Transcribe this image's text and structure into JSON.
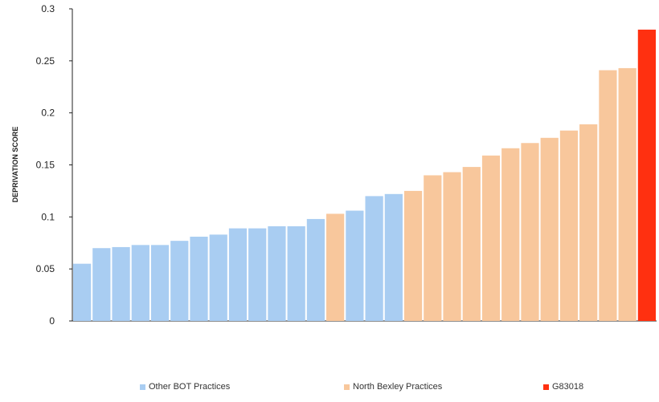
{
  "chart_data": {
    "type": "bar",
    "title": "",
    "xlabel": "",
    "ylabel": "DEPRIVATION SCORE",
    "ylim": [
      0,
      0.3
    ],
    "yticks": [
      "0",
      "0.05",
      "0.1",
      "0.15",
      "0.2",
      "0.25",
      "0.3"
    ],
    "ytick_values": [
      0,
      0.05,
      0.1,
      0.15,
      0.2,
      0.25,
      0.3
    ],
    "grid": false,
    "legend_position": "bottom",
    "series": [
      {
        "name": "Other BOT Practices",
        "color": "#a9cdf2",
        "values": [
          0.055,
          0.07,
          0.071,
          0.073,
          0.073,
          0.077,
          0.081,
          0.083,
          0.089,
          0.089,
          0.091,
          0.091,
          0.098,
          0.106,
          0.12,
          0.122
        ]
      },
      {
        "name": "North Bexley Practices",
        "color": "#f8c79c",
        "values": [
          0.103,
          0.125,
          0.14,
          0.143,
          0.148,
          0.159,
          0.166,
          0.171,
          0.176,
          0.183,
          0.189,
          0.241,
          0.243
        ]
      },
      {
        "name": "G83018",
        "color": "#ff3010",
        "values": [
          0.28
        ]
      }
    ],
    "bar_order": [
      {
        "series": 0,
        "index": 0
      },
      {
        "series": 0,
        "index": 1
      },
      {
        "series": 0,
        "index": 2
      },
      {
        "series": 0,
        "index": 3
      },
      {
        "series": 0,
        "index": 4
      },
      {
        "series": 0,
        "index": 5
      },
      {
        "series": 0,
        "index": 6
      },
      {
        "series": 0,
        "index": 7
      },
      {
        "series": 0,
        "index": 8
      },
      {
        "series": 0,
        "index": 9
      },
      {
        "series": 0,
        "index": 10
      },
      {
        "series": 0,
        "index": 11
      },
      {
        "series": 0,
        "index": 12
      },
      {
        "series": 1,
        "index": 0
      },
      {
        "series": 0,
        "index": 13
      },
      {
        "series": 0,
        "index": 14
      },
      {
        "series": 0,
        "index": 15
      },
      {
        "series": 1,
        "index": 1
      },
      {
        "series": 1,
        "index": 2
      },
      {
        "series": 1,
        "index": 3
      },
      {
        "series": 1,
        "index": 4
      },
      {
        "series": 1,
        "index": 5
      },
      {
        "series": 1,
        "index": 6
      },
      {
        "series": 1,
        "index": 7
      },
      {
        "series": 1,
        "index": 8
      },
      {
        "series": 1,
        "index": 9
      },
      {
        "series": 1,
        "index": 10
      },
      {
        "series": 1,
        "index": 11
      },
      {
        "series": 1,
        "index": 12
      },
      {
        "series": 2,
        "index": 0
      }
    ]
  }
}
